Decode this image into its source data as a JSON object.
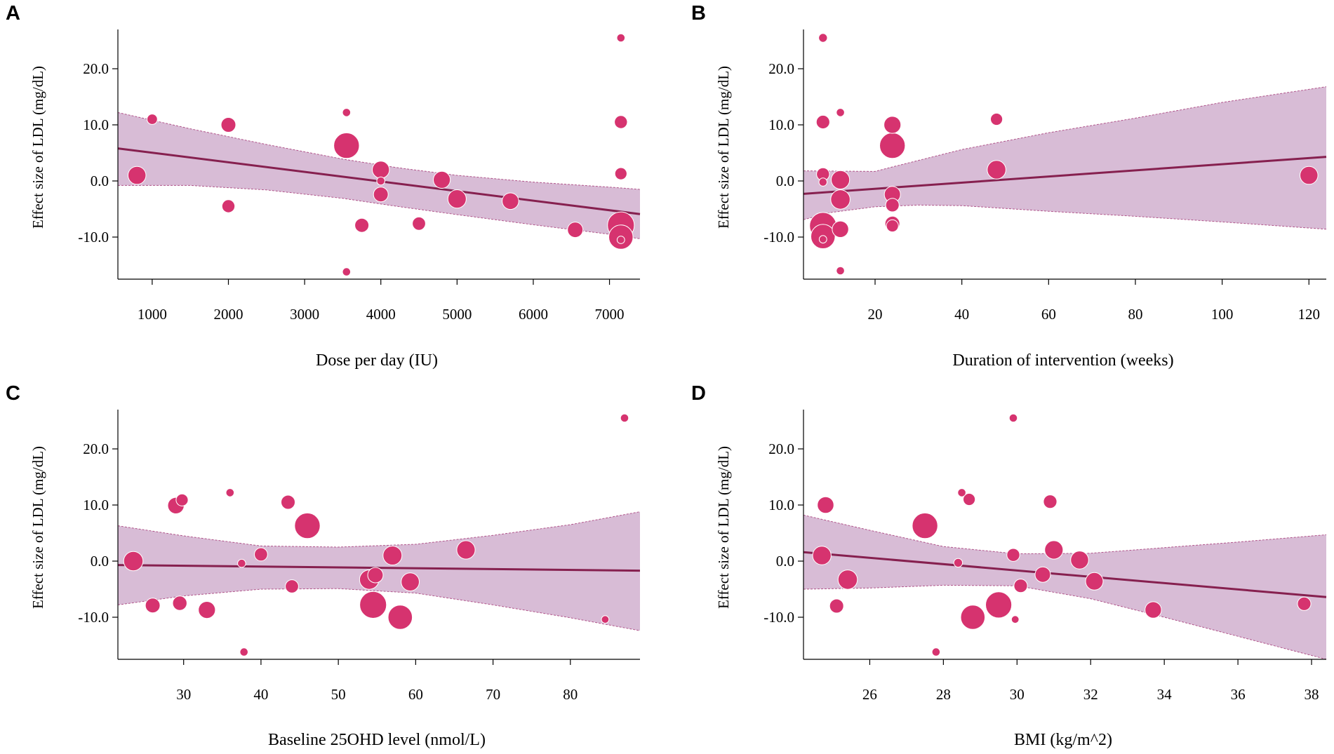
{
  "colors": {
    "point": "#d6336f",
    "point_edge": "#ffffff",
    "line": "#86204f",
    "band_fill": "#d8bcd6",
    "band_edge": "#b0548a"
  },
  "chart_data": [
    {
      "panel": "A",
      "type": "scatter",
      "xlabel": "Dose per day (IU)",
      "ylabel": "Effect size of LDL (mg/dL)",
      "xlim": [
        550,
        7400
      ],
      "ylim": [
        -17.5,
        27
      ],
      "xticks": [
        1000,
        2000,
        3000,
        4000,
        5000,
        6000,
        7000
      ],
      "xtick_labels": [
        "1000",
        "2000",
        "3000",
        "4000",
        "5000",
        "6000",
        "7000"
      ],
      "yticks": [
        -10,
        0,
        10,
        20
      ],
      "ytick_labels": [
        "-10.0",
        "0.0",
        "10.0",
        "20.0"
      ],
      "regression": [
        [
          550,
          5.8
        ],
        [
          7400,
          -5.9
        ]
      ],
      "band_upper": [
        [
          550,
          12.2
        ],
        [
          1500,
          9.3
        ],
        [
          2500,
          6.5
        ],
        [
          3500,
          3.9
        ],
        [
          4200,
          2.4
        ],
        [
          5000,
          1.0
        ],
        [
          6000,
          -0.2
        ],
        [
          7000,
          -1.1
        ],
        [
          7400,
          -1.5
        ]
      ],
      "band_lower": [
        [
          550,
          -0.8
        ],
        [
          1500,
          -0.8
        ],
        [
          2500,
          -1.6
        ],
        [
          3500,
          -3.1
        ],
        [
          4200,
          -4.5
        ],
        [
          5000,
          -6.0
        ],
        [
          6000,
          -7.8
        ],
        [
          7000,
          -9.5
        ],
        [
          7400,
          -10.3
        ]
      ],
      "points": [
        {
          "x": 800,
          "y": 1.0,
          "w": 4
        },
        {
          "x": 1000,
          "y": 11.0,
          "w": 1
        },
        {
          "x": 2000,
          "y": 10.0,
          "w": 2.5
        },
        {
          "x": 2000,
          "y": -4.5,
          "w": 1.8
        },
        {
          "x": 3550,
          "y": 12.2,
          "w": 0.5
        },
        {
          "x": 3550,
          "y": 6.3,
          "w": 9
        },
        {
          "x": 3550,
          "y": -16.2,
          "w": 0.5
        },
        {
          "x": 3750,
          "y": -7.9,
          "w": 2.2
        },
        {
          "x": 4000,
          "y": 2.0,
          "w": 3.6
        },
        {
          "x": 4000,
          "y": 0.0,
          "w": 0.5
        },
        {
          "x": 4000,
          "y": -2.4,
          "w": 2.5
        },
        {
          "x": 4500,
          "y": -7.6,
          "w": 1.9
        },
        {
          "x": 4800,
          "y": 0.2,
          "w": 3.5
        },
        {
          "x": 5000,
          "y": -3.2,
          "w": 4.2
        },
        {
          "x": 5700,
          "y": -3.6,
          "w": 3.3
        },
        {
          "x": 6550,
          "y": -8.7,
          "w": 2.8
        },
        {
          "x": 7150,
          "y": 25.5,
          "w": 0.5
        },
        {
          "x": 7150,
          "y": 10.5,
          "w": 1.8
        },
        {
          "x": 7150,
          "y": 1.3,
          "w": 1.5
        },
        {
          "x": 7150,
          "y": -7.9,
          "w": 10
        },
        {
          "x": 7150,
          "y": -10.0,
          "w": 8
        },
        {
          "x": 7150,
          "y": -10.5,
          "w": 0.4
        }
      ]
    },
    {
      "panel": "B",
      "type": "scatter",
      "xlabel": "Duration of intervention (weeks)",
      "ylabel": "Effect size of LDL (mg/dL)",
      "xlim": [
        3.5,
        124
      ],
      "ylim": [
        -17.5,
        27
      ],
      "xticks": [
        20,
        40,
        60,
        80,
        100,
        120
      ],
      "xtick_labels": [
        "20",
        "40",
        "60",
        "80",
        "100",
        "120"
      ],
      "yticks": [
        -10,
        0,
        10,
        20
      ],
      "ytick_labels": [
        "-10.0",
        "0.0",
        "10.0",
        "20.0"
      ],
      "regression": [
        [
          3.5,
          -2.3
        ],
        [
          124,
          4.3
        ]
      ],
      "band_upper": [
        [
          3.5,
          1.8
        ],
        [
          20,
          1.7
        ],
        [
          24,
          2.5
        ],
        [
          40,
          5.6
        ],
        [
          60,
          8.6
        ],
        [
          80,
          11.2
        ],
        [
          100,
          14.0
        ],
        [
          124,
          16.8
        ]
      ],
      "band_lower": [
        [
          3.5,
          -6.9
        ],
        [
          10,
          -5.6
        ],
        [
          20,
          -4.6
        ],
        [
          30,
          -4.3
        ],
        [
          40,
          -4.4
        ],
        [
          60,
          -5.4
        ],
        [
          80,
          -6.3
        ],
        [
          100,
          -7.3
        ],
        [
          124,
          -8.6
        ]
      ],
      "points": [
        {
          "x": 8,
          "y": 25.5,
          "w": 0.6
        },
        {
          "x": 8,
          "y": 10.5,
          "w": 2
        },
        {
          "x": 8,
          "y": 1.2,
          "w": 1.8
        },
        {
          "x": 8,
          "y": -0.2,
          "w": 0.5
        },
        {
          "x": 8,
          "y": -8.0,
          "w": 10
        },
        {
          "x": 8,
          "y": -9.9,
          "w": 8
        },
        {
          "x": 8,
          "y": -10.4,
          "w": 0.4
        },
        {
          "x": 12,
          "y": 12.2,
          "w": 0.5
        },
        {
          "x": 12,
          "y": 0.2,
          "w": 4.2
        },
        {
          "x": 12,
          "y": -3.3,
          "w": 4.8
        },
        {
          "x": 12,
          "y": -8.6,
          "w": 3.2
        },
        {
          "x": 12,
          "y": -16.0,
          "w": 0.5
        },
        {
          "x": 24,
          "y": 10.0,
          "w": 3.5
        },
        {
          "x": 24,
          "y": 6.3,
          "w": 9
        },
        {
          "x": 24,
          "y": -2.4,
          "w": 3.1
        },
        {
          "x": 24,
          "y": -4.3,
          "w": 2
        },
        {
          "x": 24,
          "y": -7.6,
          "w": 2.5
        },
        {
          "x": 24,
          "y": -8.0,
          "w": 1.5
        },
        {
          "x": 48,
          "y": 11.0,
          "w": 1.5
        },
        {
          "x": 48,
          "y": 2.0,
          "w": 4.4
        },
        {
          "x": 120,
          "y": 1.0,
          "w": 4
        }
      ]
    },
    {
      "panel": "C",
      "type": "scatter",
      "xlabel": "Baseline 25OHD level (nmol/L)",
      "ylabel": "Effect size of LDL (mg/dL)",
      "xlim": [
        21.5,
        89
      ],
      "ylim": [
        -17.5,
        27
      ],
      "xticks": [
        30,
        40,
        50,
        60,
        70,
        80
      ],
      "xtick_labels": [
        "30",
        "40",
        "50",
        "60",
        "70",
        "80"
      ],
      "yticks": [
        -10,
        0,
        10,
        20
      ],
      "ytick_labels": [
        "-10.0",
        "0.0",
        "10.0",
        "20.0"
      ],
      "regression": [
        [
          21.5,
          -0.7
        ],
        [
          89,
          -1.7
        ]
      ],
      "band_upper": [
        [
          21.5,
          6.3
        ],
        [
          30,
          4.5
        ],
        [
          40,
          2.7
        ],
        [
          50,
          2.5
        ],
        [
          60,
          3.0
        ],
        [
          70,
          4.6
        ],
        [
          80,
          6.5
        ],
        [
          89,
          8.8
        ]
      ],
      "band_lower": [
        [
          21.5,
          -7.8
        ],
        [
          30,
          -6.2
        ],
        [
          40,
          -5.0
        ],
        [
          50,
          -4.9
        ],
        [
          60,
          -5.7
        ],
        [
          70,
          -7.8
        ],
        [
          80,
          -10.1
        ],
        [
          89,
          -12.4
        ]
      ],
      "points": [
        {
          "x": 23.5,
          "y": 0.0,
          "w": 4.8
        },
        {
          "x": 26,
          "y": -7.9,
          "w": 2.5
        },
        {
          "x": 29,
          "y": 9.9,
          "w": 3.2
        },
        {
          "x": 29.5,
          "y": -7.5,
          "w": 2.3
        },
        {
          "x": 29.8,
          "y": 10.9,
          "w": 1.5
        },
        {
          "x": 33,
          "y": -8.7,
          "w": 3.5
        },
        {
          "x": 36,
          "y": 12.2,
          "w": 0.5
        },
        {
          "x": 37.5,
          "y": -0.4,
          "w": 0.5
        },
        {
          "x": 37.8,
          "y": -16.2,
          "w": 0.5
        },
        {
          "x": 40,
          "y": 1.2,
          "w": 1.9
        },
        {
          "x": 43.5,
          "y": 10.5,
          "w": 2.2
        },
        {
          "x": 44,
          "y": -4.5,
          "w": 1.9
        },
        {
          "x": 46,
          "y": 6.3,
          "w": 9
        },
        {
          "x": 54,
          "y": -3.3,
          "w": 4.8
        },
        {
          "x": 54.5,
          "y": -7.8,
          "w": 10
        },
        {
          "x": 54.8,
          "y": -2.5,
          "w": 2.8
        },
        {
          "x": 57,
          "y": 1.0,
          "w": 4.5
        },
        {
          "x": 58,
          "y": -10.0,
          "w": 8
        },
        {
          "x": 59.3,
          "y": -3.7,
          "w": 4.1
        },
        {
          "x": 66.5,
          "y": 2.0,
          "w": 4.2
        },
        {
          "x": 84.5,
          "y": -10.4,
          "w": 0.4
        },
        {
          "x": 87,
          "y": 25.5,
          "w": 0.5
        }
      ]
    },
    {
      "panel": "D",
      "type": "scatter",
      "xlabel": "BMI (kg/m^2)",
      "ylabel": "Effect size of LDL (mg/dL)",
      "xlim": [
        24.2,
        38.4
      ],
      "ylim": [
        -17.5,
        27
      ],
      "xticks": [
        26,
        28,
        30,
        32,
        34,
        36,
        38
      ],
      "xtick_labels": [
        "26",
        "28",
        "30",
        "32",
        "34",
        "36",
        "38"
      ],
      "yticks": [
        -10,
        0,
        10,
        20
      ],
      "ytick_labels": [
        "-10.0",
        "0.0",
        "10.0",
        "20.0"
      ],
      "regression": [
        [
          24.2,
          1.6
        ],
        [
          38.4,
          -6.4
        ]
      ],
      "band_upper": [
        [
          24.2,
          8.2
        ],
        [
          26,
          5.5
        ],
        [
          28,
          2.6
        ],
        [
          30,
          1.3
        ],
        [
          32,
          1.4
        ],
        [
          34,
          2.4
        ],
        [
          36,
          3.4
        ],
        [
          38.4,
          4.7
        ]
      ],
      "band_lower": [
        [
          24.2,
          -5.0
        ],
        [
          26,
          -4.8
        ],
        [
          28,
          -4.3
        ],
        [
          30,
          -4.4
        ],
        [
          32,
          -6.7
        ],
        [
          34,
          -10.0
        ],
        [
          36,
          -13.4
        ],
        [
          38.4,
          -17.5
        ]
      ],
      "points": [
        {
          "x": 24.7,
          "y": 1.0,
          "w": 4.3
        },
        {
          "x": 24.8,
          "y": 10.0,
          "w": 3.3
        },
        {
          "x": 25.1,
          "y": -8.0,
          "w": 2.2
        },
        {
          "x": 25.4,
          "y": -3.3,
          "w": 4.8
        },
        {
          "x": 27.5,
          "y": 6.3,
          "w": 9
        },
        {
          "x": 27.8,
          "y": -16.2,
          "w": 0.5
        },
        {
          "x": 28.4,
          "y": -0.3,
          "w": 0.6
        },
        {
          "x": 28.5,
          "y": 12.2,
          "w": 0.5
        },
        {
          "x": 28.7,
          "y": 11.0,
          "w": 1.5
        },
        {
          "x": 28.8,
          "y": -10.0,
          "w": 8
        },
        {
          "x": 29.5,
          "y": -7.8,
          "w": 9.5
        },
        {
          "x": 29.9,
          "y": 25.5,
          "w": 0.5
        },
        {
          "x": 29.9,
          "y": 1.1,
          "w": 1.8
        },
        {
          "x": 29.95,
          "y": -10.4,
          "w": 0.4
        },
        {
          "x": 30.1,
          "y": -4.4,
          "w": 2
        },
        {
          "x": 30.7,
          "y": -2.4,
          "w": 2.8
        },
        {
          "x": 30.9,
          "y": 10.6,
          "w": 2
        },
        {
          "x": 31.0,
          "y": 2.0,
          "w": 4.2
        },
        {
          "x": 31.7,
          "y": 0.2,
          "w": 4
        },
        {
          "x": 32.1,
          "y": -3.6,
          "w": 3.8
        },
        {
          "x": 33.7,
          "y": -8.7,
          "w": 3.2
        },
        {
          "x": 37.8,
          "y": -7.6,
          "w": 2
        }
      ]
    }
  ]
}
